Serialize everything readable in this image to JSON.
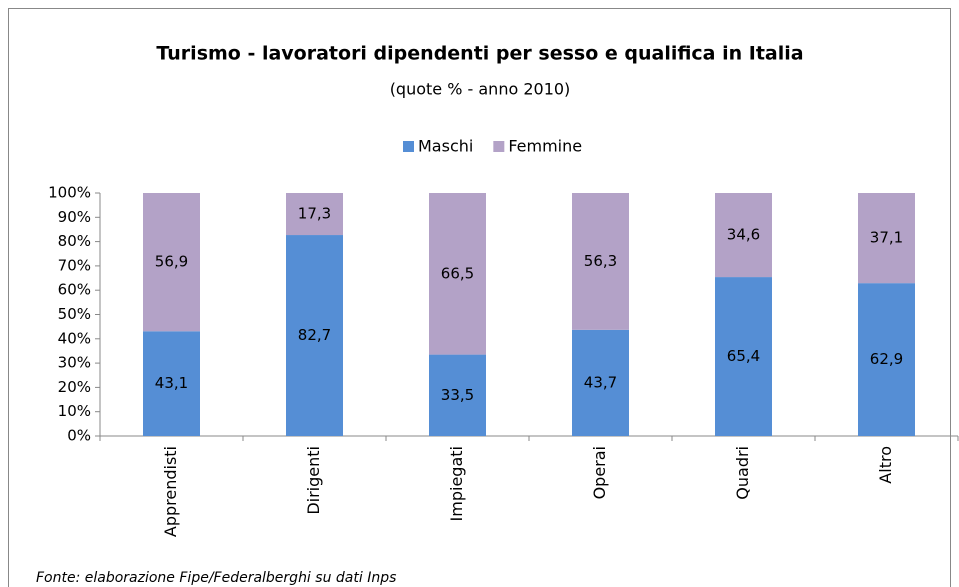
{
  "chart_data": {
    "type": "stacked_bar",
    "title": "Turismo - lavoratori dipendenti per sesso e qualifica in Italia",
    "subtitle": "(quote % - anno 2010)",
    "categories": [
      "Apprendisti",
      "Dirigenti",
      "Impiegati",
      "Operai",
      "Quadri",
      "Altro"
    ],
    "series": [
      {
        "name": "Maschi",
        "color": "#558ed5",
        "values": [
          43.1,
          82.7,
          33.5,
          43.7,
          65.4,
          62.9
        ],
        "value_labels": [
          "43,1",
          "82,7",
          "33,5",
          "43,7",
          "65,4",
          "62,9"
        ]
      },
      {
        "name": "Femmine",
        "color": "#b3a2c7",
        "values": [
          56.9,
          17.3,
          66.5,
          56.3,
          34.6,
          37.1
        ],
        "value_labels": [
          "56,9",
          "17,3",
          "66,5",
          "56,3",
          "34,6",
          "37,1"
        ]
      }
    ],
    "ylim": [
      0,
      100
    ],
    "yticks": [
      {
        "value": 0,
        "label": "0%"
      },
      {
        "value": 10,
        "label": "10%"
      },
      {
        "value": 20,
        "label": "20%"
      },
      {
        "value": 30,
        "label": "30%"
      },
      {
        "value": 40,
        "label": "40%"
      },
      {
        "value": 50,
        "label": "50%"
      },
      {
        "value": 60,
        "label": "60%"
      },
      {
        "value": 70,
        "label": "70%"
      },
      {
        "value": 80,
        "label": "80%"
      },
      {
        "value": 90,
        "label": "90%"
      },
      {
        "value": 100,
        "label": "100%"
      }
    ],
    "legend": "top",
    "note": "Fonte: elaborazione Fipe/Federalberghi su dati Inps"
  }
}
